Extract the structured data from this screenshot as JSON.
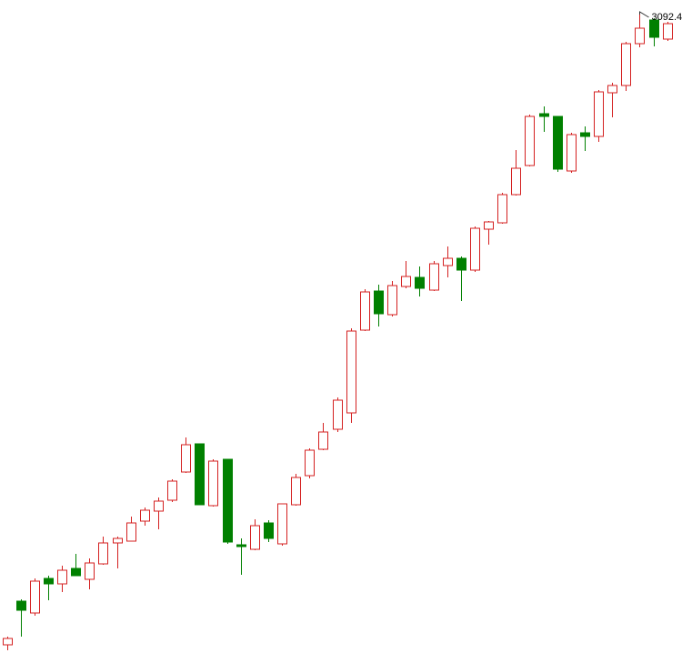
{
  "chart_data": {
    "type": "candlestick",
    "annotation": "3092.4",
    "up_color": "#d42020",
    "down_color": "#008000",
    "ylim": [
      2379.4,
      3108.4
    ],
    "open": [
      2399.4,
      2447.4,
      2434.4,
      2472.4,
      2466.4,
      2483.4,
      2471.4,
      2488.4,
      2511.4,
      2513.4,
      2535.4,
      2546.4,
      2558.4,
      2589.4,
      2620.4,
      2552.4,
      2603.4,
      2509.4,
      2504.4,
      2533.4,
      2510.4,
      2553.4,
      2585.4,
      2614.4,
      2636.4,
      2654.4,
      2745.4,
      2788.4,
      2762.4,
      2793.4,
      2803.4,
      2789.4,
      2816.4,
      2824.4,
      2811.4,
      2856.4,
      2863.4,
      2894.4,
      2926.4,
      2983.4,
      2980.4,
      2920.4,
      2962.4,
      2958.4,
      3006.4,
      3014.4,
      3060.4,
      3086.4,
      3065.4
    ],
    "high": [
      2408.4,
      2449.4,
      2472.4,
      2475.4,
      2486.4,
      2499.4,
      2494.4,
      2518.4,
      2518.4,
      2540.4,
      2550.4,
      2561.4,
      2581.4,
      2627.4,
      2620.4,
      2603.4,
      2603.4,
      2516.4,
      2537.4,
      2536.4,
      2554.4,
      2587.4,
      2615.4,
      2643.4,
      2671.4,
      2747.4,
      2790.4,
      2795.4,
      2799.4,
      2821.4,
      2815.4,
      2821.4,
      2837.4,
      2826.4,
      2859.4,
      2865.4,
      2896.4,
      2943.4,
      2982.4,
      2991.4,
      2980.4,
      2962.4,
      2969.4,
      3009.4,
      3017.4,
      3062.4,
      3092.4,
      3088.4,
      3084.4
    ],
    "low": [
      2393.4,
      2408.4,
      2431.4,
      2448.4,
      2457.4,
      2475.4,
      2460.4,
      2487.4,
      2483.4,
      2513.4,
      2530.4,
      2526.4,
      2556.4,
      2588.4,
      2553.4,
      2551.4,
      2510.4,
      2476.4,
      2503.4,
      2512.4,
      2508.4,
      2552.4,
      2582.4,
      2613.4,
      2633.4,
      2643.4,
      2744.4,
      2749.4,
      2760.4,
      2791.4,
      2782.4,
      2788.4,
      2803.4,
      2777.4,
      2809.4,
      2839.4,
      2862.4,
      2893.4,
      2925.4,
      2963.4,
      2919.4,
      2918.4,
      2942.4,
      2952.4,
      2979.4,
      3008.4,
      3056.4,
      3057.4,
      3063.4
    ],
    "close": [
      2406.4,
      2437.4,
      2469.4,
      2466.4,
      2481.4,
      2475.4,
      2489.4,
      2511.4,
      2516.4,
      2533.4,
      2547.4,
      2557.4,
      2579.4,
      2619.4,
      2553.4,
      2601.4,
      2512.4,
      2507.4,
      2530.4,
      2516.4,
      2554.4,
      2583.4,
      2613.4,
      2633.4,
      2668.4,
      2744.4,
      2787.4,
      2763.4,
      2794.4,
      2804.4,
      2791.4,
      2818.4,
      2824.4,
      2811.4,
      2857.4,
      2864.4,
      2894.4,
      2923.4,
      2980.4,
      2980.4,
      2922.4,
      2960.4,
      2958.4,
      3007.4,
      3014.4,
      3060.4,
      3077.4,
      3067.4,
      3082.4
    ]
  }
}
